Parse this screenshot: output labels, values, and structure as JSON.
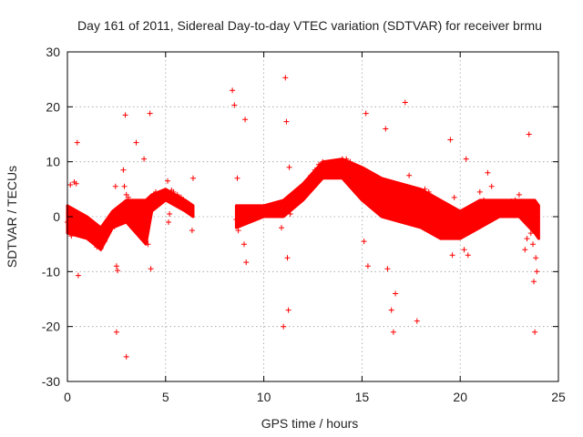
{
  "chart_data": {
    "type": "scatter",
    "title": "Day 161 of 2011, Sidereal Day-to-day VTEC variation (SDTVAR) for receiver brmu",
    "xlabel": "GPS time / hours",
    "ylabel": "SDTVAR / TECUs",
    "xlim": [
      0,
      25
    ],
    "ylim": [
      -30,
      30
    ],
    "xticks": [
      0,
      5,
      10,
      15,
      20,
      25
    ],
    "yticks": [
      -30,
      -20,
      -10,
      0,
      10,
      20,
      30
    ],
    "xtick_labels": [
      "0",
      "5",
      "10",
      "15",
      "20",
      "25"
    ],
    "ytick_labels": [
      "-30",
      "-20",
      "-10",
      "0",
      "10",
      "20",
      "30"
    ],
    "grid": true,
    "marker": "+",
    "color": "#ff0000",
    "series": [
      {
        "name": "SDTVAR",
        "points": [
          [
            0.0,
            -1.0
          ],
          [
            0.1,
            -2.0
          ],
          [
            0.15,
            5.8
          ],
          [
            0.2,
            -3.5
          ],
          [
            0.3,
            -1.5
          ],
          [
            0.35,
            6.3
          ],
          [
            0.45,
            6.0
          ],
          [
            0.5,
            13.5
          ],
          [
            0.55,
            -10.7
          ],
          [
            0.6,
            -1.2
          ],
          [
            0.8,
            -2.0
          ],
          [
            1.0,
            -2.5
          ],
          [
            1.2,
            -3.0
          ],
          [
            1.3,
            -4.5
          ],
          [
            1.5,
            -5.5
          ],
          [
            1.7,
            -5.8
          ],
          [
            1.9,
            -4.5
          ],
          [
            2.0,
            -3.0
          ],
          [
            2.2,
            -1.5
          ],
          [
            2.3,
            -0.5
          ],
          [
            2.4,
            -1.8
          ],
          [
            2.45,
            5.5
          ],
          [
            2.5,
            -21.0
          ],
          [
            2.5,
            -9.0
          ],
          [
            2.55,
            -9.8
          ],
          [
            2.6,
            1.5
          ],
          [
            2.7,
            0.5
          ],
          [
            2.8,
            1.5
          ],
          [
            2.85,
            8.5
          ],
          [
            2.9,
            5.5
          ],
          [
            2.95,
            18.5
          ],
          [
            3.0,
            -25.5
          ],
          [
            3.0,
            4.0
          ],
          [
            3.1,
            3.5
          ],
          [
            3.2,
            -1.0
          ],
          [
            3.3,
            -2.0
          ],
          [
            3.4,
            -2.0
          ],
          [
            3.5,
            13.5
          ],
          [
            3.6,
            -3.0
          ],
          [
            3.8,
            -4.0
          ],
          [
            3.9,
            10.5
          ],
          [
            4.0,
            -4.5
          ],
          [
            4.1,
            -5.0
          ],
          [
            4.2,
            18.8
          ],
          [
            4.25,
            -9.5
          ],
          [
            4.3,
            2.0
          ],
          [
            4.4,
            4.0
          ],
          [
            4.5,
            4.5
          ],
          [
            4.6,
            3.8
          ],
          [
            4.7,
            3.0
          ],
          [
            4.8,
            3.5
          ],
          [
            4.9,
            4.0
          ],
          [
            5.0,
            4.5
          ],
          [
            5.1,
            6.5
          ],
          [
            5.15,
            -1.0
          ],
          [
            5.2,
            0.5
          ],
          [
            5.3,
            4.8
          ],
          [
            5.4,
            4.5
          ],
          [
            5.6,
            4.0
          ],
          [
            5.8,
            3.5
          ],
          [
            6.0,
            2.5
          ],
          [
            6.1,
            2.0
          ],
          [
            6.2,
            1.5
          ],
          [
            6.3,
            1.2
          ],
          [
            6.35,
            -2.5
          ],
          [
            6.4,
            7.0
          ],
          [
            8.4,
            23.0
          ],
          [
            8.5,
            20.3
          ],
          [
            8.6,
            -0.5
          ],
          [
            8.65,
            7.0
          ],
          [
            8.7,
            -2.5
          ],
          [
            8.8,
            -1.5
          ],
          [
            8.9,
            -1.0
          ],
          [
            9.0,
            -5.0
          ],
          [
            9.05,
            17.7
          ],
          [
            9.1,
            -8.3
          ],
          [
            9.2,
            -0.5
          ],
          [
            9.4,
            0.0
          ],
          [
            9.6,
            0.5
          ],
          [
            9.8,
            0.5
          ],
          [
            10.0,
            1.0
          ],
          [
            10.2,
            1.2
          ],
          [
            10.4,
            1.5
          ],
          [
            10.6,
            1.8
          ],
          [
            10.8,
            2.0
          ],
          [
            10.9,
            -2.0
          ],
          [
            11.0,
            -20.0
          ],
          [
            11.1,
            25.3
          ],
          [
            11.15,
            17.3
          ],
          [
            11.2,
            -7.5
          ],
          [
            11.25,
            -17.0
          ],
          [
            11.3,
            9.0
          ],
          [
            11.35,
            0.5
          ],
          [
            11.4,
            2.5
          ],
          [
            11.5,
            3.0
          ],
          [
            11.6,
            3.5
          ],
          [
            11.8,
            4.0
          ],
          [
            12.0,
            5.0
          ],
          [
            12.2,
            6.0
          ],
          [
            12.4,
            7.5
          ],
          [
            12.6,
            8.5
          ],
          [
            12.8,
            9.5
          ],
          [
            13.0,
            10.0
          ],
          [
            13.2,
            9.5
          ],
          [
            13.4,
            9.0
          ],
          [
            13.6,
            9.5
          ],
          [
            13.8,
            10.0
          ],
          [
            14.0,
            10.5
          ],
          [
            14.2,
            10.5
          ],
          [
            14.4,
            10.0
          ],
          [
            14.6,
            9.0
          ],
          [
            14.8,
            8.0
          ],
          [
            15.0,
            6.5
          ],
          [
            15.1,
            -4.5
          ],
          [
            15.2,
            18.8
          ],
          [
            15.3,
            -9.0
          ],
          [
            15.4,
            5.5
          ],
          [
            15.6,
            5.0
          ],
          [
            15.8,
            4.5
          ],
          [
            16.0,
            3.5
          ],
          [
            16.2,
            16.0
          ],
          [
            16.3,
            -9.5
          ],
          [
            16.4,
            3.0
          ],
          [
            16.5,
            -17.0
          ],
          [
            16.6,
            -21.0
          ],
          [
            16.7,
            -14.0
          ],
          [
            16.8,
            3.5
          ],
          [
            17.0,
            4.5
          ],
          [
            17.2,
            20.8
          ],
          [
            17.4,
            7.5
          ],
          [
            17.6,
            3.0
          ],
          [
            17.8,
            -19.0
          ],
          [
            18.0,
            3.0
          ],
          [
            18.2,
            5.0
          ],
          [
            18.4,
            4.5
          ],
          [
            18.6,
            3.5
          ],
          [
            18.8,
            2.0
          ],
          [
            19.0,
            0.5
          ],
          [
            19.2,
            -1.5
          ],
          [
            19.4,
            -3.5
          ],
          [
            19.5,
            14.0
          ],
          [
            19.6,
            -7.0
          ],
          [
            19.7,
            3.5
          ],
          [
            19.8,
            -3.0
          ],
          [
            20.0,
            -1.5
          ],
          [
            20.2,
            -6.0
          ],
          [
            20.3,
            10.5
          ],
          [
            20.4,
            -7.0
          ],
          [
            20.5,
            -0.5
          ],
          [
            20.6,
            -1.0
          ],
          [
            20.8,
            -2.0
          ],
          [
            21.0,
            4.5
          ],
          [
            21.2,
            3.0
          ],
          [
            21.4,
            8.0
          ],
          [
            21.6,
            5.5
          ],
          [
            21.8,
            1.0
          ],
          [
            22.0,
            1.5
          ],
          [
            22.2,
            2.0
          ],
          [
            22.4,
            2.5
          ],
          [
            22.6,
            2.8
          ],
          [
            22.8,
            3.0
          ],
          [
            23.0,
            4.0
          ],
          [
            23.2,
            2.5
          ],
          [
            23.3,
            -6.0
          ],
          [
            23.4,
            -4.0
          ],
          [
            23.5,
            15.0
          ],
          [
            23.6,
            -3.0
          ],
          [
            23.7,
            -5.0
          ],
          [
            23.75,
            -11.8
          ],
          [
            23.8,
            -21.0
          ],
          [
            23.85,
            -7.5
          ],
          [
            23.9,
            -10.0
          ]
        ],
        "bands": [
          {
            "x_start": 0.0,
            "x_end": 6.4,
            "lower": [
              [
                0,
                -3
              ],
              [
                1,
                -4
              ],
              [
                1.7,
                -6
              ],
              [
                2.3,
                -2
              ],
              [
                3,
                -1
              ],
              [
                4,
                -5
              ],
              [
                4.3,
                1
              ],
              [
                5,
                3
              ],
              [
                6,
                1
              ],
              [
                6.4,
                0
              ]
            ],
            "upper": [
              [
                0,
                2
              ],
              [
                1,
                0
              ],
              [
                1.7,
                -2
              ],
              [
                2.3,
                1
              ],
              [
                3,
                3
              ],
              [
                4,
                3
              ],
              [
                4.3,
                4
              ],
              [
                5,
                5
              ],
              [
                6,
                3
              ],
              [
                6.4,
                2
              ]
            ]
          },
          {
            "x_start": 8.6,
            "x_end": 24.0,
            "lower": [
              [
                8.6,
                -2
              ],
              [
                10,
                0
              ],
              [
                11,
                0
              ],
              [
                12,
                3
              ],
              [
                13,
                7
              ],
              [
                14,
                7
              ],
              [
                15,
                3
              ],
              [
                16,
                0
              ],
              [
                17,
                -1
              ],
              [
                18,
                -2
              ],
              [
                19,
                -4
              ],
              [
                20,
                -4
              ],
              [
                21,
                -2
              ],
              [
                22,
                0
              ],
              [
                23,
                0
              ],
              [
                23.8,
                -3
              ],
              [
                24,
                -4
              ]
            ],
            "upper": [
              [
                8.6,
                2
              ],
              [
                10,
                2
              ],
              [
                11,
                3
              ],
              [
                12,
                6
              ],
              [
                13,
                10
              ],
              [
                14,
                10.5
              ],
              [
                15,
                9
              ],
              [
                16,
                7
              ],
              [
                17,
                6
              ],
              [
                18,
                5
              ],
              [
                19,
                3
              ],
              [
                20,
                1
              ],
              [
                21,
                3
              ],
              [
                22,
                3
              ],
              [
                23,
                3
              ],
              [
                23.8,
                3
              ],
              [
                24,
                2
              ]
            ]
          }
        ]
      }
    ]
  }
}
